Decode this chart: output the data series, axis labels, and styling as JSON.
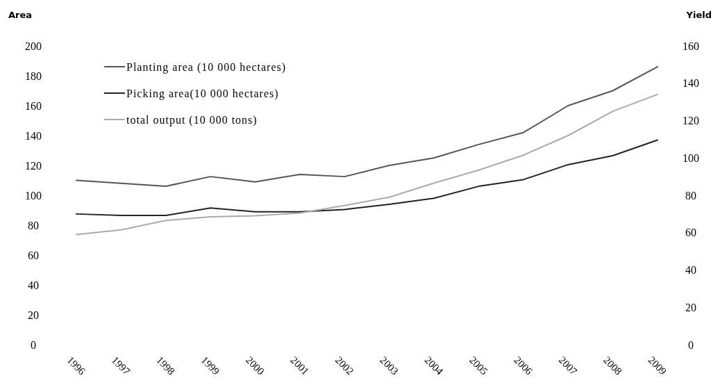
{
  "chart_data": {
    "type": "line",
    "ylabel": "Area",
    "y2label": "Yield",
    "categories": [
      "1996",
      "1997",
      "1998",
      "1999",
      "2000",
      "2001",
      "2002",
      "2003",
      "2004",
      "2005",
      "2006",
      "2007",
      "2008",
      "2009"
    ],
    "series": [
      {
        "name": "Planting area (10 000 hectares)",
        "color": "#555555",
        "values": [
          110,
          108,
          106,
          112.5,
          109,
          114,
          112.5,
          120,
          125,
          134,
          142,
          160,
          170,
          186
        ]
      },
      {
        "name": "Picking area(10 000 hectares)",
        "color": "#222222",
        "values": [
          87.5,
          86.5,
          86.5,
          91.5,
          89,
          89,
          90.5,
          94,
          98,
          106,
          110.5,
          120.5,
          126.5,
          137
        ]
      },
      {
        "name": "total output (10 000 tons)",
        "color": "#aaaaaa",
        "axis": "y2",
        "values": [
          59,
          61.5,
          66.5,
          68.5,
          69,
          70.5,
          74.5,
          79,
          86.5,
          93.5,
          101.5,
          112,
          125,
          134
        ]
      }
    ],
    "ylim": [
      0,
      200
    ],
    "yticks": [
      0,
      20,
      40,
      60,
      80,
      100,
      120,
      140,
      160,
      180,
      200
    ],
    "y2lim": [
      0,
      160
    ],
    "y2ticks": [
      0,
      20,
      40,
      60,
      80,
      100,
      120,
      140,
      160
    ],
    "legend": "top left",
    "grid": false
  }
}
